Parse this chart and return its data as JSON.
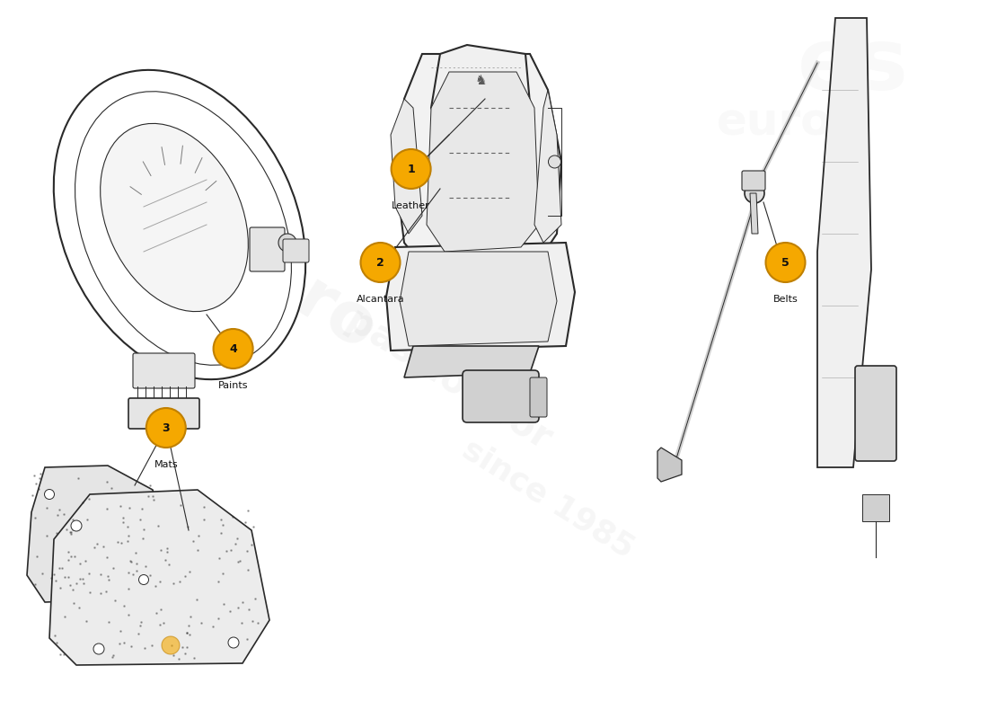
{
  "bg": "#ffffff",
  "badge_fill": "#F5A800",
  "badge_edge": "#c08000",
  "badge_text": "#111111",
  "draw_color": "#2a2a2a",
  "parts": [
    {
      "num": 1,
      "label": "Leather",
      "bx": 0.416,
      "by": 0.765
    },
    {
      "num": 2,
      "label": "Alcantara",
      "bx": 0.385,
      "by": 0.635
    },
    {
      "num": 3,
      "label": "Mats",
      "bx": 0.168,
      "by": 0.405
    },
    {
      "num": 4,
      "label": "Paints",
      "bx": 0.236,
      "by": 0.515
    },
    {
      "num": 5,
      "label": "Belts",
      "bx": 0.795,
      "by": 0.635
    }
  ]
}
